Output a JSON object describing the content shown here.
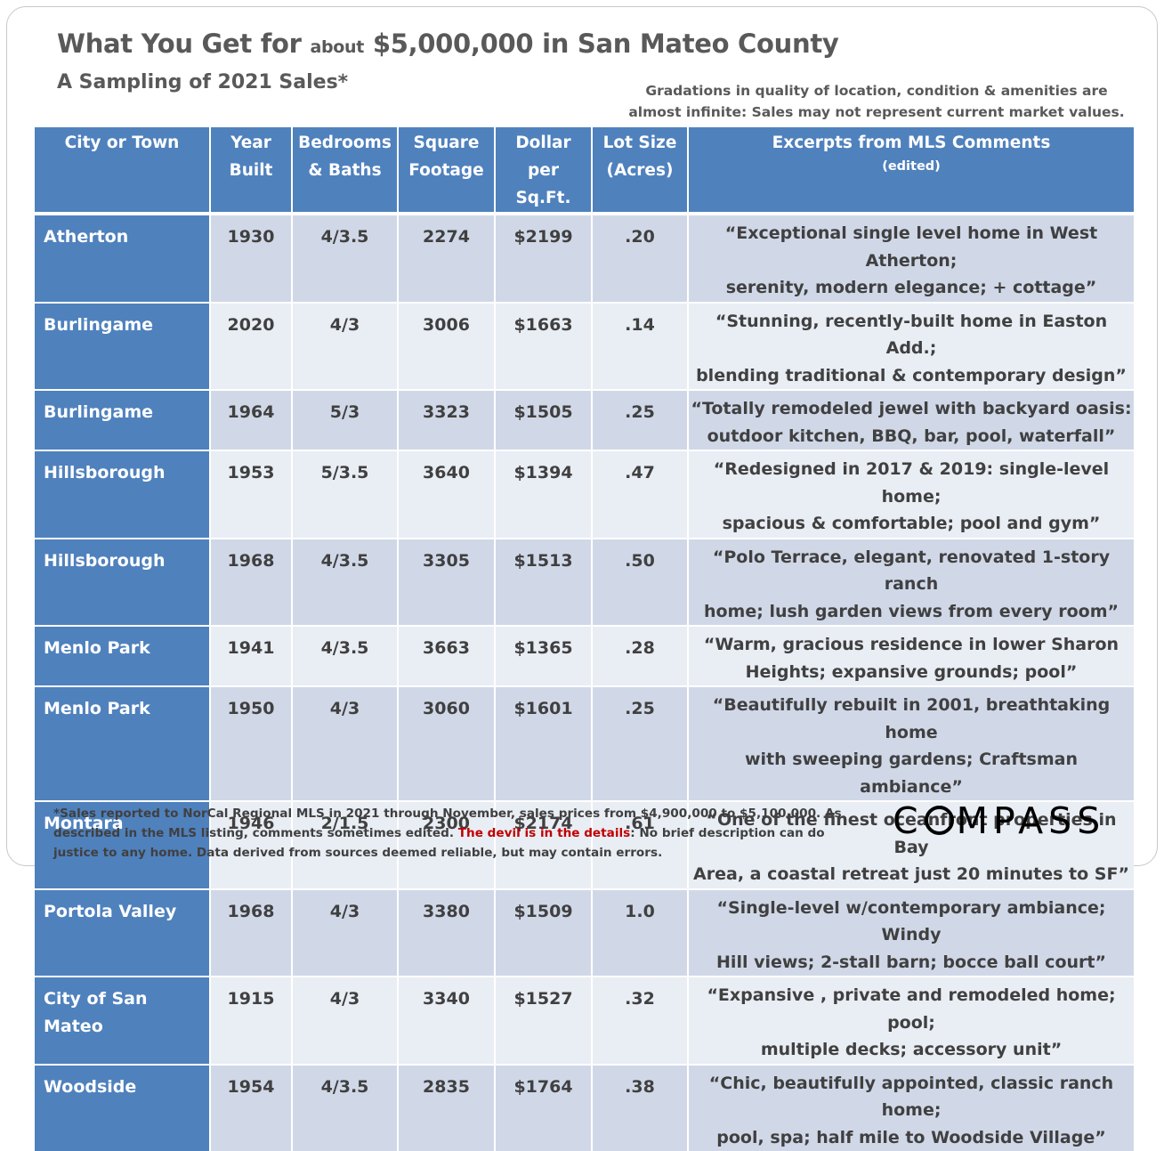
{
  "title": {
    "pre": "What You Get for ",
    "small": "about",
    "post": " $5,000,000 in San Mateo County"
  },
  "subtitle": "A Sampling of 2021 Sales*",
  "note": "Gradations in quality of location, condition & amenities are almost infinite: Sales may not represent current market values.",
  "headers": {
    "city": "City or Town",
    "year_1": "Year",
    "year_2": "Built",
    "beds_1": "Bedrooms",
    "beds_2": "& Baths",
    "sqft_1": "Square",
    "sqft_2": "Footage",
    "dps_1": "Dollar",
    "dps_2": "per Sq.Ft.",
    "lot_1": "Lot Size",
    "lot_2": "(Acres)",
    "comments_1": "Excerpts from MLS Comments",
    "comments_2": "(edited)"
  },
  "rows": [
    {
      "city": "Atherton",
      "year": "1930",
      "beds": "4/3.5",
      "sqft": "2274",
      "dps": "$2199",
      "lot": ".20",
      "c1": "“Exceptional single level home in West Atherton;",
      "c2": "serenity, modern elegance; + cottage”"
    },
    {
      "city": "Burlingame",
      "year": "2020",
      "beds": "4/3",
      "sqft": "3006",
      "dps": "$1663",
      "lot": ".14",
      "c1": "“Stunning, recently-built home in Easton Add.;",
      "c2": "blending traditional & contemporary design”"
    },
    {
      "city": "Burlingame",
      "year": "1964",
      "beds": "5/3",
      "sqft": "3323",
      "dps": "$1505",
      "lot": ".25",
      "c1": "“Totally remodeled jewel with backyard oasis:",
      "c2": "outdoor kitchen, BBQ, bar, pool, waterfall”"
    },
    {
      "city": "Hillsborough",
      "year": "1953",
      "beds": "5/3.5",
      "sqft": "3640",
      "dps": "$1394",
      "lot": ".47",
      "c1": "“Redesigned in 2017 & 2019: single-level home;",
      "c2": "spacious & comfortable; pool and gym”"
    },
    {
      "city": "Hillsborough",
      "year": "1968",
      "beds": "4/3.5",
      "sqft": "3305",
      "dps": "$1513",
      "lot": ".50",
      "c1": "“Polo Terrace, elegant, renovated 1-story ranch",
      "c2": "home; lush garden views  from every room”"
    },
    {
      "city": "Menlo Park",
      "year": "1941",
      "beds": "4/3.5",
      "sqft": "3663",
      "dps": "$1365",
      "lot": ".28",
      "c1": "“Warm, gracious residence in lower Sharon",
      "c2": "Heights; expansive grounds; pool”"
    },
    {
      "city": "Menlo Park",
      "year": "1950",
      "beds": "4/3",
      "sqft": "3060",
      "dps": "$1601",
      "lot": ".25",
      "c1": "“Beautifully rebuilt in 2001, breathtaking home",
      "c2": "with sweeping gardens; Craftsman ambiance”"
    },
    {
      "city": "Montara",
      "year": "1946",
      "beds": "2/1.5",
      "sqft": "2300",
      "dps": "$2174",
      "lot": ".61",
      "c1": "“One of the finest oceanfront properties in Bay",
      "c2": "Area, a coastal retreat just 20 minutes to SF”"
    },
    {
      "city": "Portola Valley",
      "year": "1968",
      "beds": "4/3",
      "sqft": "3380",
      "dps": "$1509",
      "lot": "1.0",
      "c1": "“Single-level w/contemporary ambiance; Windy",
      "c2": "Hill views; 2-stall barn; bocce ball court”"
    },
    {
      "city": "City of San Mateo",
      "year": "1915",
      "beds": "4/3",
      "sqft": "3340",
      "dps": "$1527",
      "lot": ".32",
      "c1": "“Expansive , private and remodeled home; pool;",
      "c2": "multiple decks; accessory unit”"
    },
    {
      "city": "Woodside",
      "year": "1954",
      "beds": "4/3.5",
      "sqft": "2835",
      "dps": "$1764",
      "lot": ".38",
      "c1": "“Chic, beautifully appointed, classic ranch home;",
      "c2": "pool, spa; half mile to Woodside Village”"
    }
  ],
  "footnote": {
    "part1": "*Sales reported to NorCal Regional MLS in 2021 through November, sales prices from $4,900,000 to $5,100,000. As described in the MLS listing, comments sometimes edited. ",
    "red": "The devil is in the details",
    "part2": ": No brief description can do justice to any home. Data derived from sources deemed reliable, but may contain errors."
  },
  "logo": {
    "left": "C",
    "right": "MPASS",
    "o_letter": "O"
  }
}
